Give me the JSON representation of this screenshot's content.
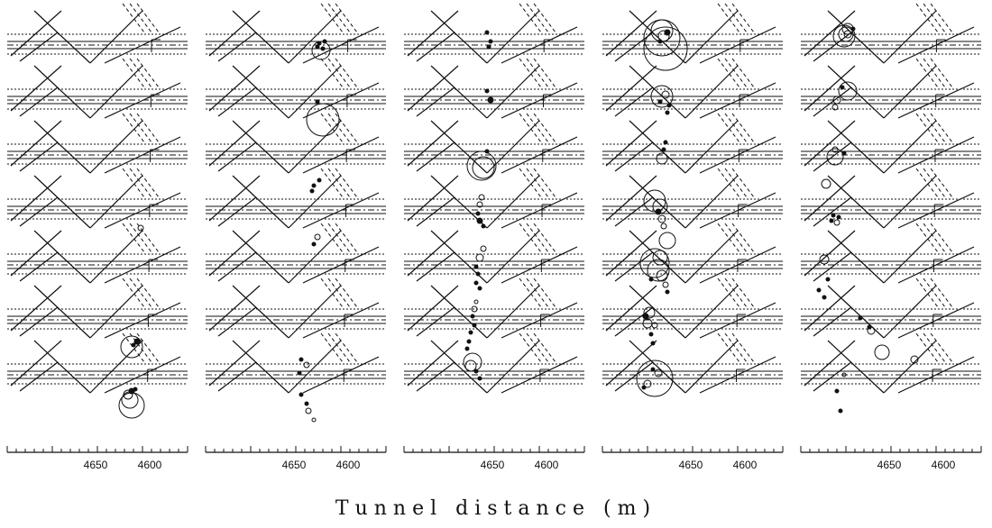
{
  "figure": {
    "x_axis": {
      "label": "Tunnel distance (m)",
      "tick_labels": [
        "4650",
        "4600"
      ]
    },
    "grid": {
      "columns": 5,
      "rows": 7
    }
  }
}
